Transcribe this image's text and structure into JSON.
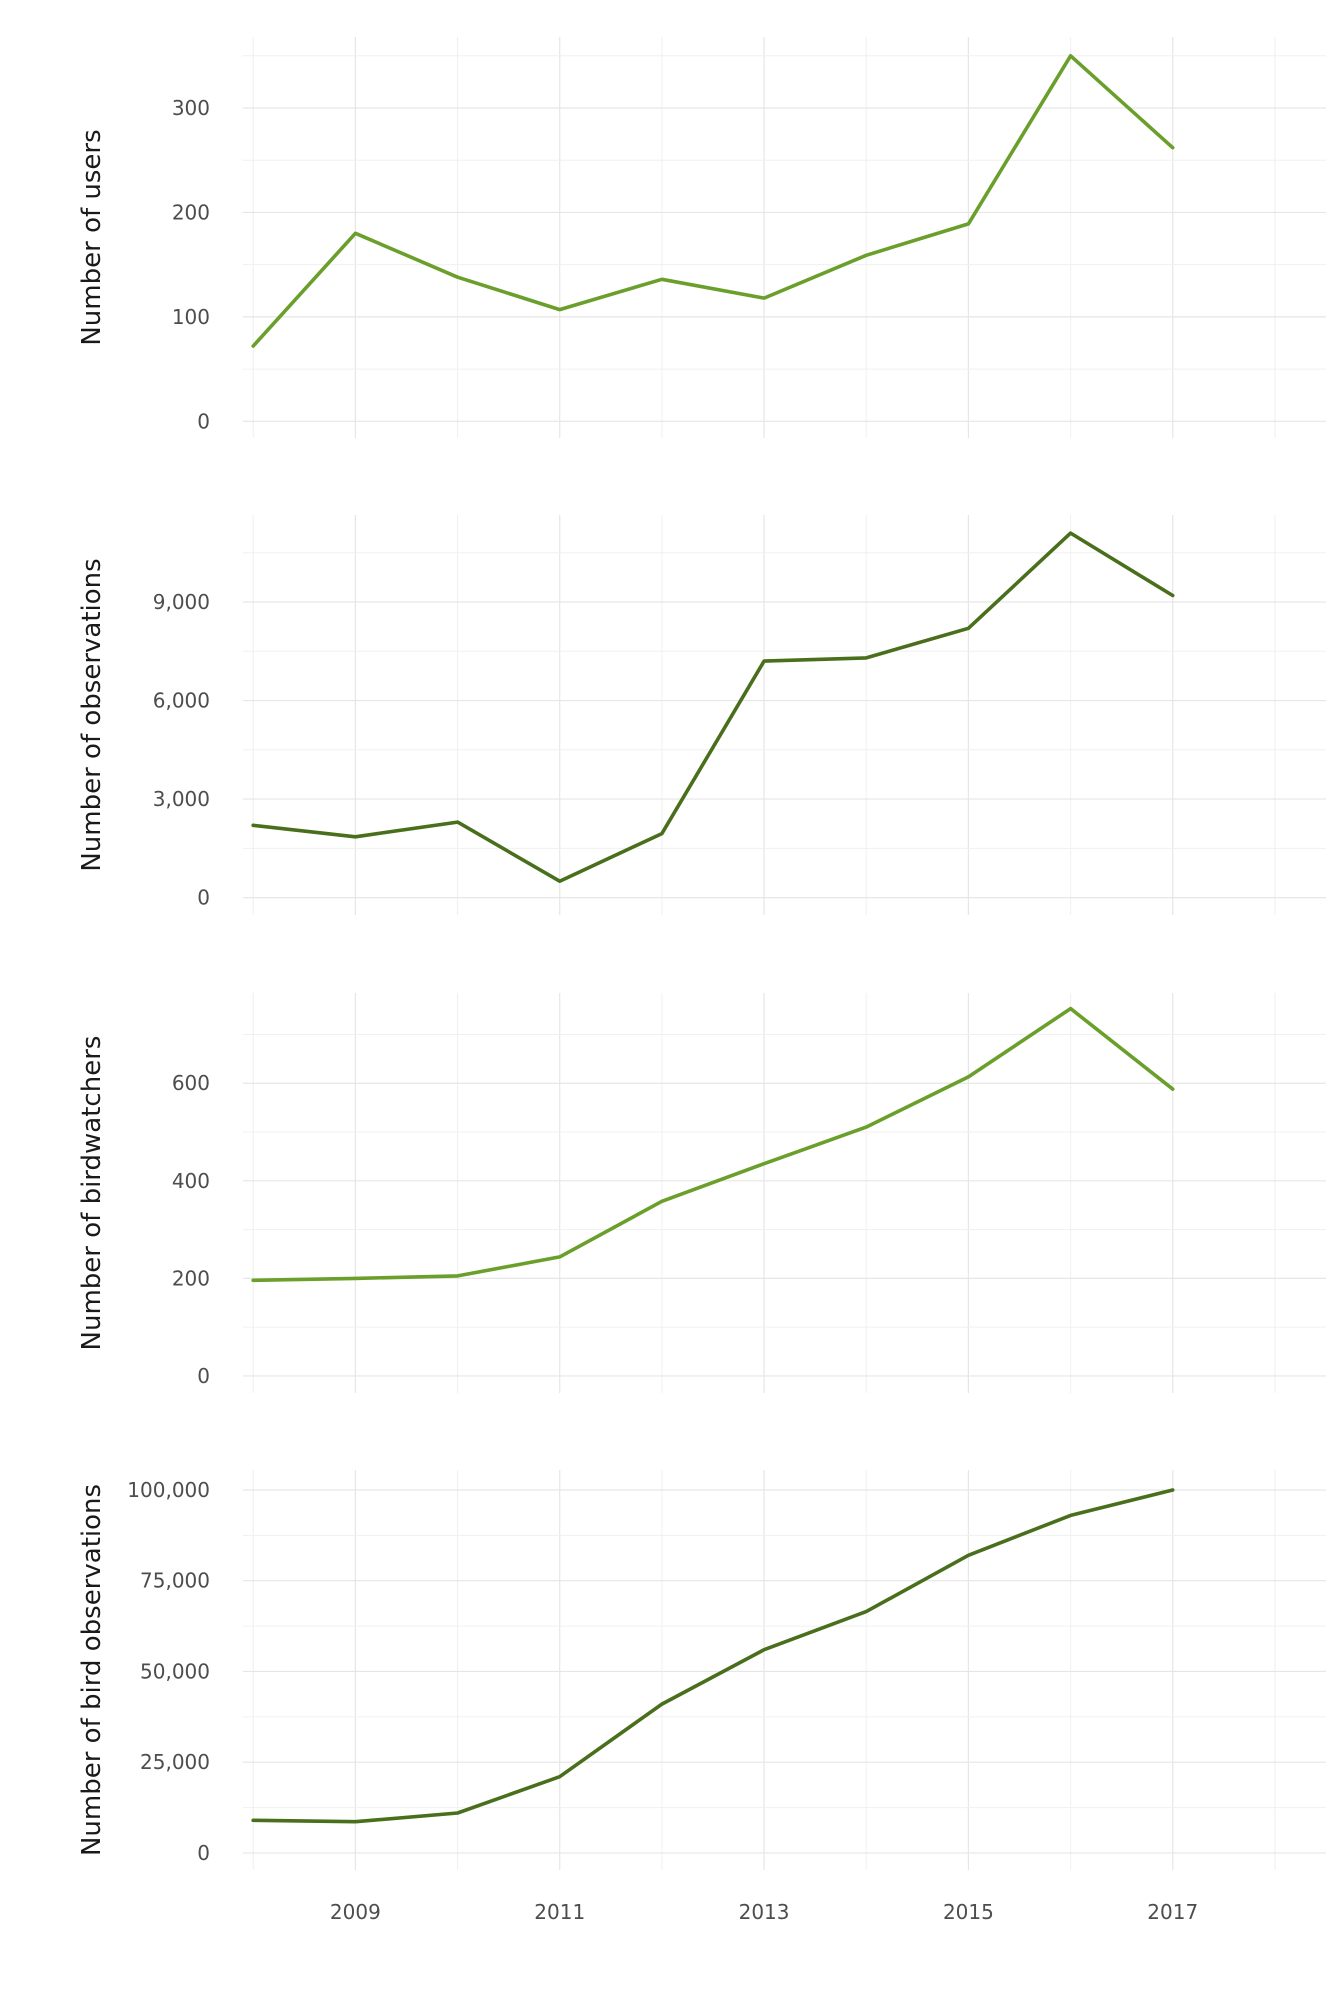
{
  "chart_data": [
    {
      "type": "line",
      "ylabel": "Number of users",
      "x": [
        2008,
        2009,
        2010,
        2011,
        2012,
        2013,
        2014,
        2015,
        2016,
        2017
      ],
      "series": [
        {
          "values": [
            72,
            180,
            138,
            107,
            136,
            118,
            159,
            189,
            350,
            262
          ]
        }
      ],
      "ylim": [
        -16,
        368
      ],
      "yticks": [
        0,
        100,
        200,
        300
      ],
      "yticklabels": [
        "0",
        "100",
        "200",
        "300"
      ],
      "color": "#6a9f2b",
      "grid": true
    },
    {
      "type": "line",
      "ylabel": "Number of observations",
      "x": [
        2008,
        2009,
        2010,
        2011,
        2012,
        2013,
        2014,
        2015,
        2016,
        2017
      ],
      "series": [
        {
          "values": [
            2200,
            1850,
            2300,
            500,
            1950,
            7200,
            7300,
            8200,
            11100,
            9200
          ]
        }
      ],
      "ylim": [
        -530,
        11650
      ],
      "yticks": [
        0,
        3000,
        6000,
        9000
      ],
      "yticklabels": [
        "0",
        "3,000",
        "6,000",
        "9,000"
      ],
      "color": "#4a6f1c",
      "grid": true
    },
    {
      "type": "line",
      "ylabel": "Number of birdwatchers",
      "x": [
        2008,
        2009,
        2010,
        2011,
        2012,
        2013,
        2014,
        2015,
        2016,
        2017
      ],
      "series": [
        {
          "values": [
            196,
            200,
            205,
            244,
            358,
            435,
            510,
            613,
            753,
            588
          ]
        }
      ],
      "ylim": [
        -35,
        785
      ],
      "yticks": [
        0,
        200,
        400,
        600
      ],
      "yticklabels": [
        "0",
        "200",
        "400",
        "600"
      ],
      "color": "#6a9f2b",
      "grid": true
    },
    {
      "type": "line",
      "ylabel": "Number of bird observations",
      "x": [
        2008,
        2009,
        2010,
        2011,
        2012,
        2013,
        2014,
        2015,
        2016,
        2017
      ],
      "series": [
        {
          "values": [
            9000,
            8600,
            11000,
            21000,
            41000,
            56000,
            66500,
            82000,
            93000,
            100000
          ]
        }
      ],
      "ylim": [
        -4700,
        105500
      ],
      "yticks": [
        0,
        25000,
        50000,
        75000,
        100000
      ],
      "yticklabels": [
        "0",
        "25,000",
        "50,000",
        "75,000",
        "100,000"
      ],
      "color": "#4a6f1c",
      "grid": true
    }
  ],
  "shared_x_axis": {
    "range": [
      2007.9,
      2018.5
    ],
    "ticks": [
      2009,
      2011,
      2013,
      2015,
      2017
    ],
    "ticklabels": [
      "2009",
      "2011",
      "2013",
      "2015",
      "2017"
    ]
  }
}
